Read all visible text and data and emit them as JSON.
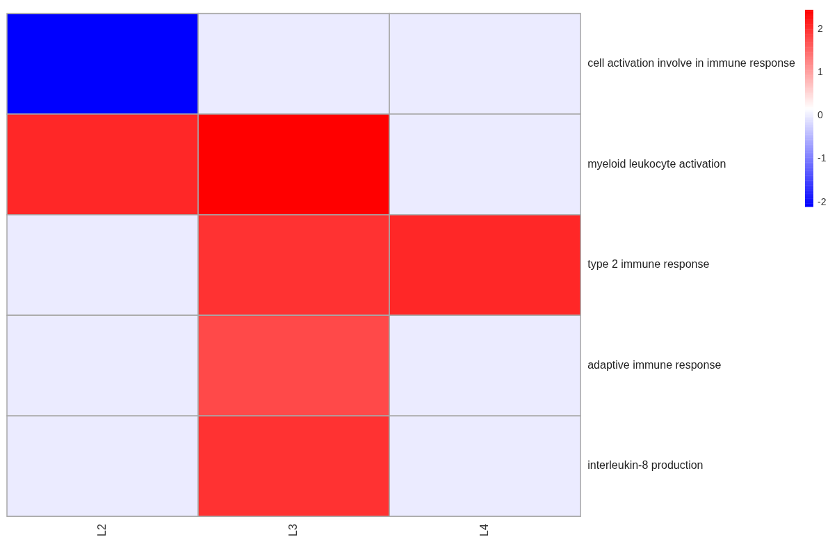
{
  "chart_data": {
    "type": "heatmap",
    "categories": [
      "L2",
      "L3",
      "L4"
    ],
    "y_categories": [
      "cell activation involve in immune response",
      "myeloid leukocyte activation",
      "type 2 immune response",
      "adaptive immune response",
      "interleukin-8 production"
    ],
    "cells": [
      [
        -2.1,
        0,
        0
      ],
      [
        2.1,
        2.45,
        0
      ],
      [
        0,
        2.0,
        2.1
      ],
      [
        0,
        1.8,
        0
      ],
      [
        0,
        2.0,
        0
      ]
    ],
    "colors": [
      "#0000ff",
      "#ffffff",
      "#ff0000"
    ],
    "clim": [
      -2.1,
      2.45
    ],
    "cticks": [
      -2,
      -1,
      0,
      1,
      2
    ]
  }
}
